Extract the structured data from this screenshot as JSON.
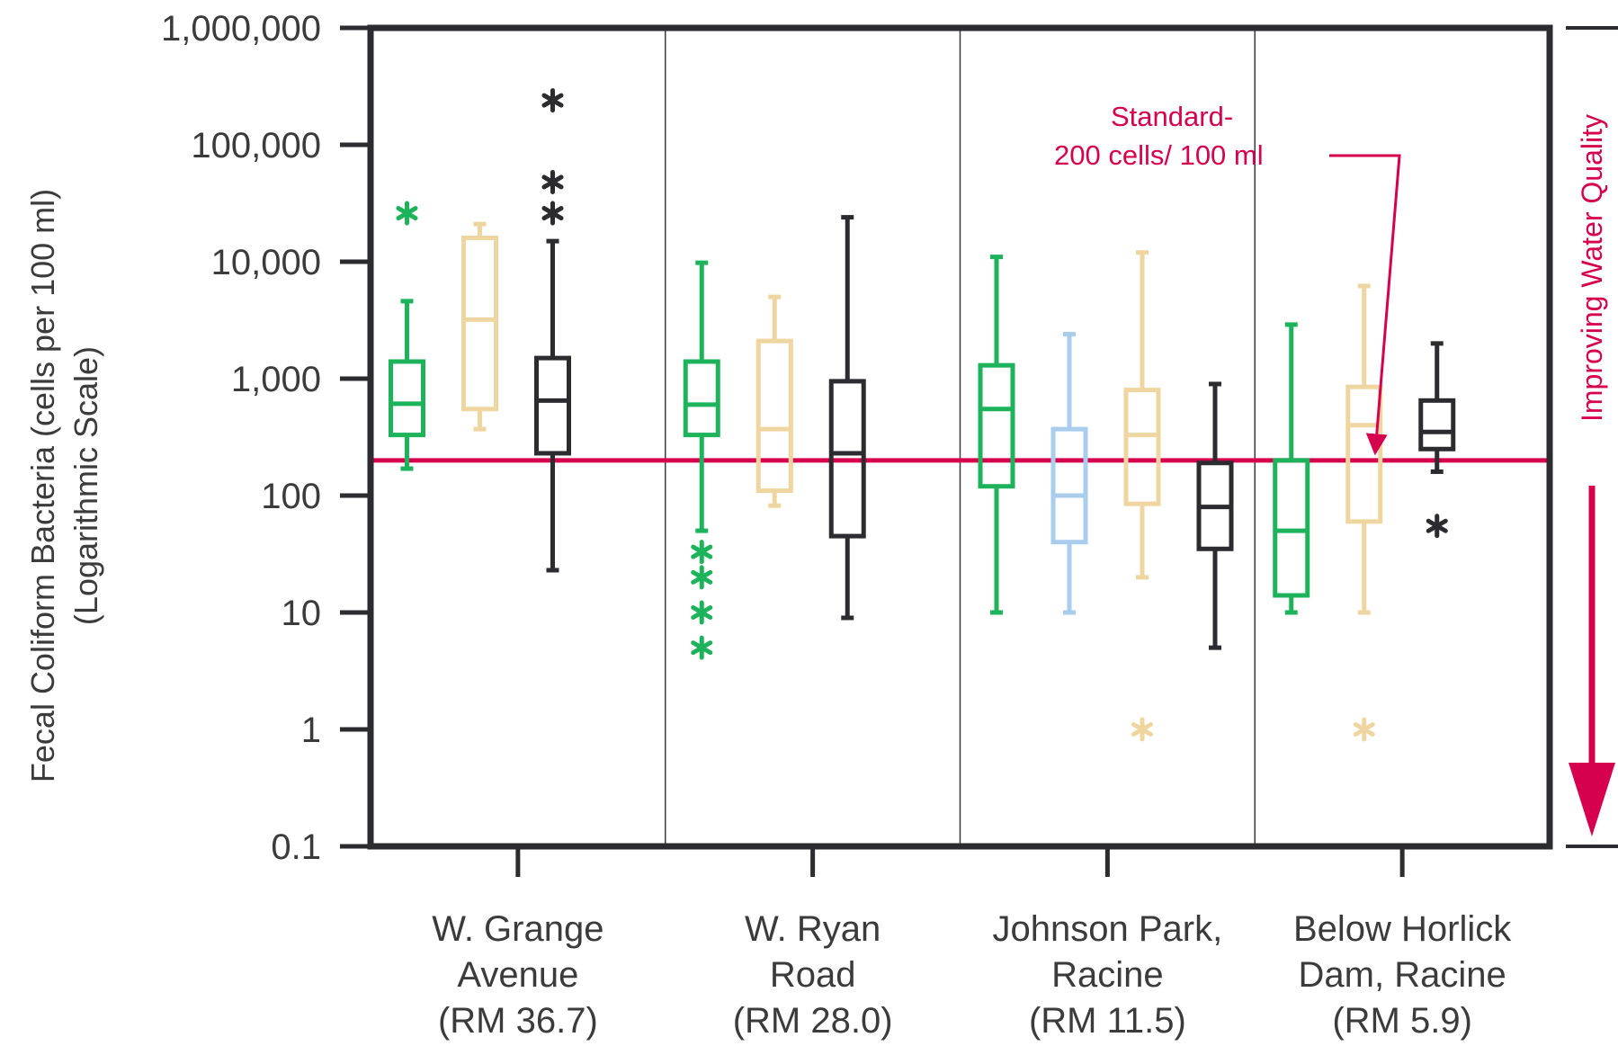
{
  "chart_data": {
    "type": "box",
    "ylabel": "Fecal Coliform Bacteria (cells per 100 ml)",
    "ylabel_sub": "(Logarithmic Scale)",
    "yscale": "log",
    "ylim": [
      0.1,
      1000000
    ],
    "y_ticks": [
      {
        "value": 0.1,
        "label": "0.1"
      },
      {
        "value": 1,
        "label": "1"
      },
      {
        "value": 10,
        "label": "10"
      },
      {
        "value": 100,
        "label": "100"
      },
      {
        "value": 1000,
        "label": "1,000"
      },
      {
        "value": 10000,
        "label": "10,000"
      },
      {
        "value": 100000,
        "label": "100,000"
      },
      {
        "value": 1000000,
        "label": "1,000,000"
      }
    ],
    "grid": false,
    "categories": [
      {
        "lines": [
          "W. Grange",
          "Avenue",
          "(RM 36.7)"
        ]
      },
      {
        "lines": [
          "W. Ryan",
          "Road",
          "(RM 28.0)"
        ]
      },
      {
        "lines": [
          "Johnson Park,",
          "Racine",
          "(RM 11.5)"
        ]
      },
      {
        "lines": [
          "Below Horlick",
          "Dam, Racine",
          "(RM 5.9)"
        ]
      }
    ],
    "standard": {
      "value": 200,
      "label_lines": [
        "Standard-",
        "200 cells/ 100 ml"
      ],
      "color": "#d6004f"
    },
    "side_annotation": {
      "text": "Improving Water Quality",
      "color": "#d6004f"
    },
    "colors": {
      "green": "#1cb35a",
      "blue": "#a9cdec",
      "tan": "#efd6a0",
      "black": "#2b2b30",
      "axis": "#2b2b30"
    },
    "boxes": [
      {
        "category": 0,
        "slot": 0.5,
        "color": "green",
        "min": 170,
        "q1": 330,
        "median": 610,
        "q3": 1400,
        "max": 4600,
        "outliers": [
          26000
        ]
      },
      {
        "category": 0,
        "slot": 1.5,
        "color": "tan",
        "min": 370,
        "q1": 550,
        "median": 3200,
        "q3": 16000,
        "max": 21000,
        "outliers": []
      },
      {
        "category": 0,
        "slot": 2.5,
        "color": "black",
        "min": 23,
        "q1": 230,
        "median": 650,
        "q3": 1500,
        "max": 15000,
        "outliers": [
          240000,
          48000,
          26000
        ]
      },
      {
        "category": 1,
        "slot": 0.5,
        "color": "green",
        "min": 50,
        "q1": 330,
        "median": 600,
        "q3": 1400,
        "max": 9800,
        "outliers": [
          33,
          20,
          10,
          5
        ]
      },
      {
        "category": 1,
        "slot": 1.5,
        "color": "tan",
        "min": 82,
        "q1": 110,
        "median": 370,
        "q3": 2100,
        "max": 5000,
        "outliers": []
      },
      {
        "category": 1,
        "slot": 2.5,
        "color": "black",
        "min": 9,
        "q1": 45,
        "median": 230,
        "q3": 950,
        "max": 24000,
        "outliers": []
      },
      {
        "category": 2,
        "slot": 0.5,
        "color": "green",
        "min": 10,
        "q1": 120,
        "median": 550,
        "q3": 1300,
        "max": 11000,
        "outliers": []
      },
      {
        "category": 2,
        "slot": 1.5,
        "color": "blue",
        "min": 10,
        "q1": 40,
        "median": 100,
        "q3": 370,
        "max": 2400,
        "outliers": []
      },
      {
        "category": 2,
        "slot": 2.5,
        "color": "tan",
        "min": 20,
        "q1": 85,
        "median": 330,
        "q3": 800,
        "max": 12000,
        "outliers": [
          1
        ]
      },
      {
        "category": 2,
        "slot": 3.5,
        "color": "black",
        "min": 5,
        "q1": 35,
        "median": 80,
        "q3": 190,
        "max": 900,
        "outliers": []
      },
      {
        "category": 3,
        "slot": 0.5,
        "color": "green",
        "min": 10,
        "q1": 14,
        "median": 50,
        "q3": 200,
        "max": 2900,
        "outliers": []
      },
      {
        "category": 3,
        "slot": 1.5,
        "color": "tan",
        "min": 10,
        "q1": 60,
        "median": 400,
        "q3": 850,
        "max": 6200,
        "outliers": [
          1
        ]
      },
      {
        "category": 3,
        "slot": 2.5,
        "color": "black",
        "min": 160,
        "q1": 250,
        "median": 350,
        "q3": 650,
        "max": 2000,
        "outliers": [
          55
        ]
      }
    ]
  }
}
